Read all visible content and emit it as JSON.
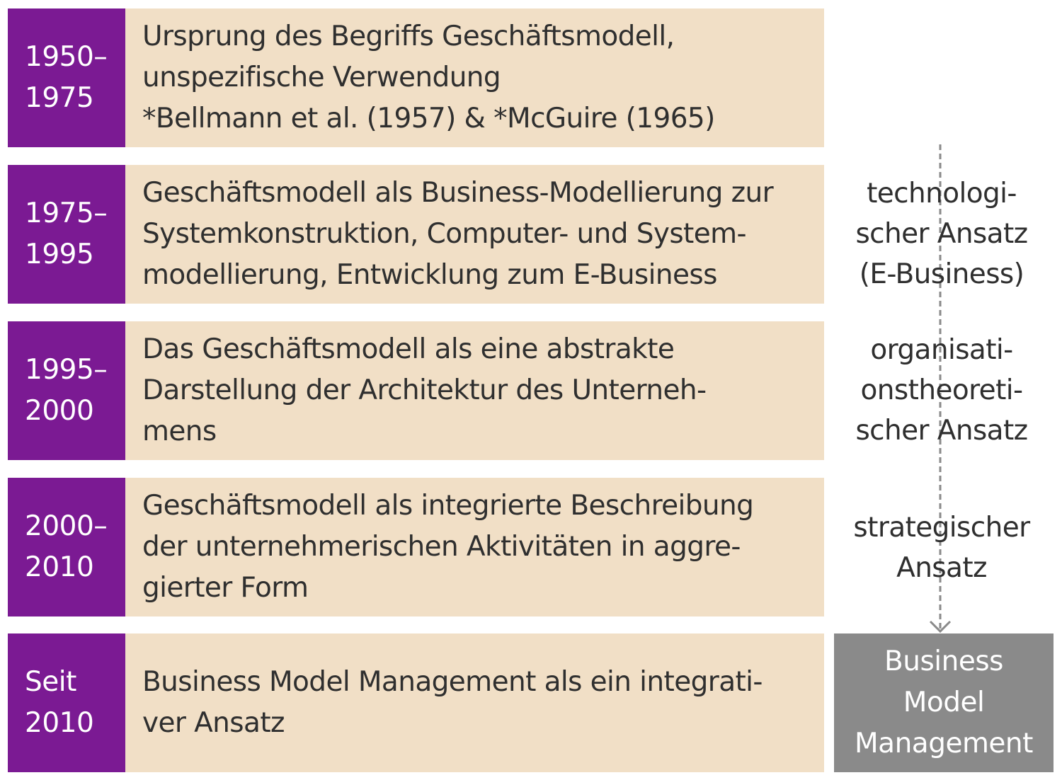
{
  "rows": [
    {
      "period_lines": [
        "1950–",
        "1975"
      ],
      "description_lines": [
        "Ursprung des Begriffs Geschäftsmodell,",
        "unspezifische Verwendung",
        "*Bellmann et al. (1957) & *McGuire (1965)"
      ]
    },
    {
      "period_lines": [
        "1975–",
        "1995"
      ],
      "description_lines": [
        "Geschäftsmodell als Business-Modellierung zur",
        "Systemkonstruktion, Computer- und System-",
        "modellierung, Entwicklung zum E-Business"
      ]
    },
    {
      "period_lines": [
        "1995–",
        "2000"
      ],
      "description_lines": [
        "Das Geschäftsmodell als eine abstrakte",
        "Darstellung der Architektur des Unterneh-",
        "mens"
      ]
    },
    {
      "period_lines": [
        "2000–",
        "2010"
      ],
      "description_lines": [
        "Geschäftsmodell als integrierte Beschreibung",
        "der unternehmerischen Aktivitäten in aggre-",
        "gierter Form"
      ]
    },
    {
      "period_lines": [
        "Seit",
        "2010"
      ],
      "description_lines": [
        "Business Model Management als ein integrati-",
        "ver Ansatz"
      ]
    }
  ],
  "approaches": [
    {
      "lines": [
        "technologi-",
        "scher Ansatz",
        "(E-Business)"
      ]
    },
    {
      "lines": [
        "organisati-",
        "onstheoreti-",
        "scher Ansatz"
      ]
    },
    {
      "lines": [
        "strategischer",
        "Ansatz"
      ]
    }
  ],
  "result_box": {
    "lines": [
      "Business",
      "Model",
      "Management"
    ]
  },
  "colors": {
    "period_fill": "#7b1a93",
    "description_fill": "#f1dfc6",
    "result_fill": "#8a8a8a",
    "arrow": "#8a8a8a"
  }
}
